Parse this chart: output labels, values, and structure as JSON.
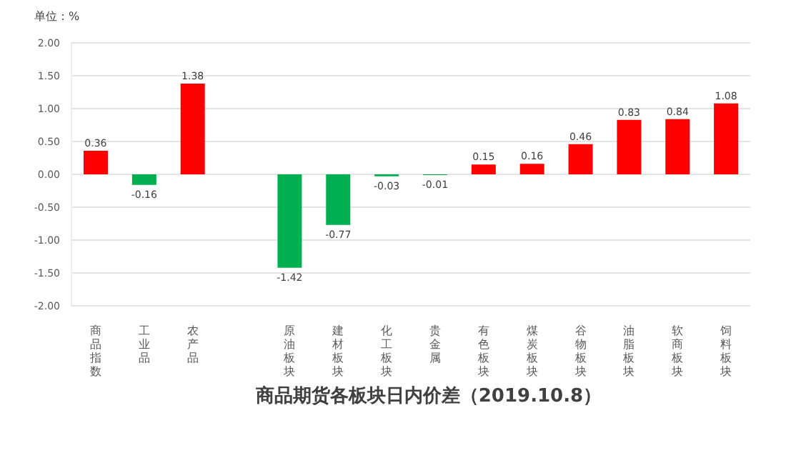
{
  "chart_data": {
    "type": "bar",
    "title": "商品期货各板块日内价差（2019.10.8）",
    "ylabel": "单位：%",
    "categories": [
      "商品指数",
      "工业品",
      "农产品",
      null,
      "原油板块",
      "建材板块",
      "化工板块",
      "贵金属",
      "有色板块",
      "煤炭板块",
      "谷物板块",
      "油脂板块",
      "软商板块",
      "饲料板块"
    ],
    "values": [
      0.36,
      -0.16,
      1.38,
      null,
      -1.42,
      -0.77,
      -0.03,
      -0.01,
      0.15,
      0.16,
      0.46,
      0.83,
      0.84,
      1.08
    ],
    "colors": [
      "#ff0000",
      "#00b050",
      "#ff0000",
      null,
      "#00b050",
      "#00b050",
      "#00b050",
      "#00b050",
      "#ff0000",
      "#ff0000",
      "#ff0000",
      "#ff0000",
      "#ff0000",
      "#ff0000"
    ],
    "ylim": [
      -2,
      2
    ],
    "yticks": [
      {
        "value": 2,
        "label": "2.00"
      },
      {
        "value": 1.5,
        "label": "1.50"
      },
      {
        "value": 1,
        "label": "1.00"
      },
      {
        "value": 0.5,
        "label": "0.50"
      },
      {
        "value": 0,
        "label": "0.00"
      },
      {
        "value": -0.5,
        "label": "-0.50"
      },
      {
        "value": -1,
        "label": "-1.00"
      },
      {
        "value": -1.5,
        "label": "-1.50"
      },
      {
        "value": -2,
        "label": "-2.00"
      }
    ],
    "grid": "y",
    "data_labels": true
  }
}
